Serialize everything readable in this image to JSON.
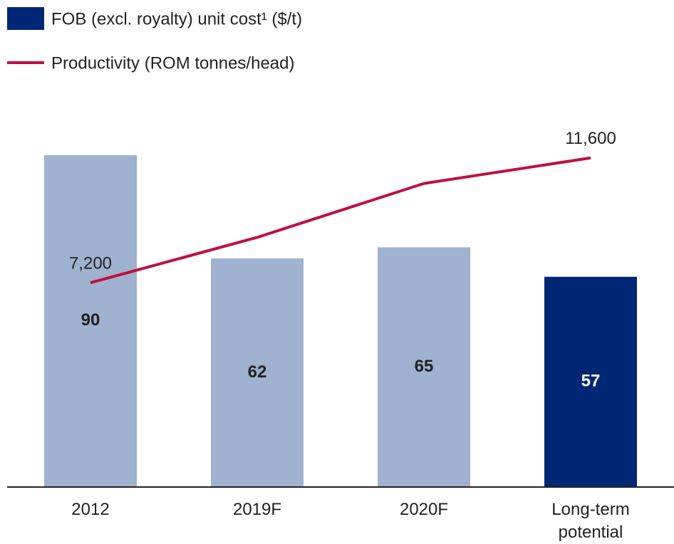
{
  "chart_data": {
    "type": "combo",
    "categories": [
      "2012",
      "2019F",
      "2020F",
      "Long-term potential"
    ],
    "series": [
      {
        "name": "FOB (excl. royalty) unit cost¹ ($/t)",
        "type": "bar",
        "color": "#002776",
        "colors": [
          "#9fb2cf",
          "#9fb2cf",
          "#9fb2cf",
          "#002776"
        ],
        "values": [
          90,
          62,
          65,
          57
        ]
      },
      {
        "name": "Productivity (ROM tonnes/head)",
        "type": "line",
        "axis": "y2",
        "color": "#c0103e",
        "values": [
          7200,
          8800,
          10700,
          11600
        ],
        "value_labels": [
          "7,200",
          null,
          null,
          "11,600"
        ]
      }
    ],
    "ylim": [
      0,
      100
    ],
    "y2lim": [
      0,
      13000
    ]
  }
}
